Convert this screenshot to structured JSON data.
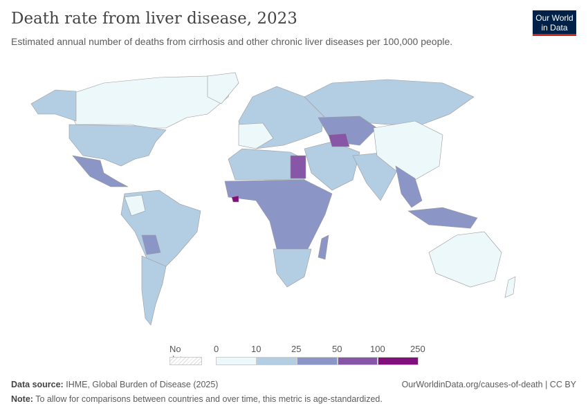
{
  "title": "Death rate from liver disease, 2023",
  "subtitle": "Estimated annual number of deaths from cirrhosis and other chronic liver diseases per 100,000 people.",
  "logo": {
    "line1": "Our World",
    "line2": "in Data"
  },
  "legend": {
    "no_data": "No data",
    "ticks": [
      "0",
      "10",
      "25",
      "50",
      "100",
      "250"
    ],
    "bins": [
      {
        "range": "0-10",
        "color": "#edf8fb"
      },
      {
        "range": "10-25",
        "color": "#b3cde3"
      },
      {
        "range": "25-50",
        "color": "#8c96c6"
      },
      {
        "range": "50-100",
        "color": "#8856a7"
      },
      {
        "range": "100-250",
        "color": "#810f7c"
      }
    ]
  },
  "footer": {
    "source_label": "Data source:",
    "source": "IHME, Global Burden of Disease (2025)",
    "url": "OurWorldinData.org/causes-of-death | CC BY",
    "note_label": "Note:",
    "note": "To allow for comparisons between countries and over time, this metric is age-standardized."
  }
}
